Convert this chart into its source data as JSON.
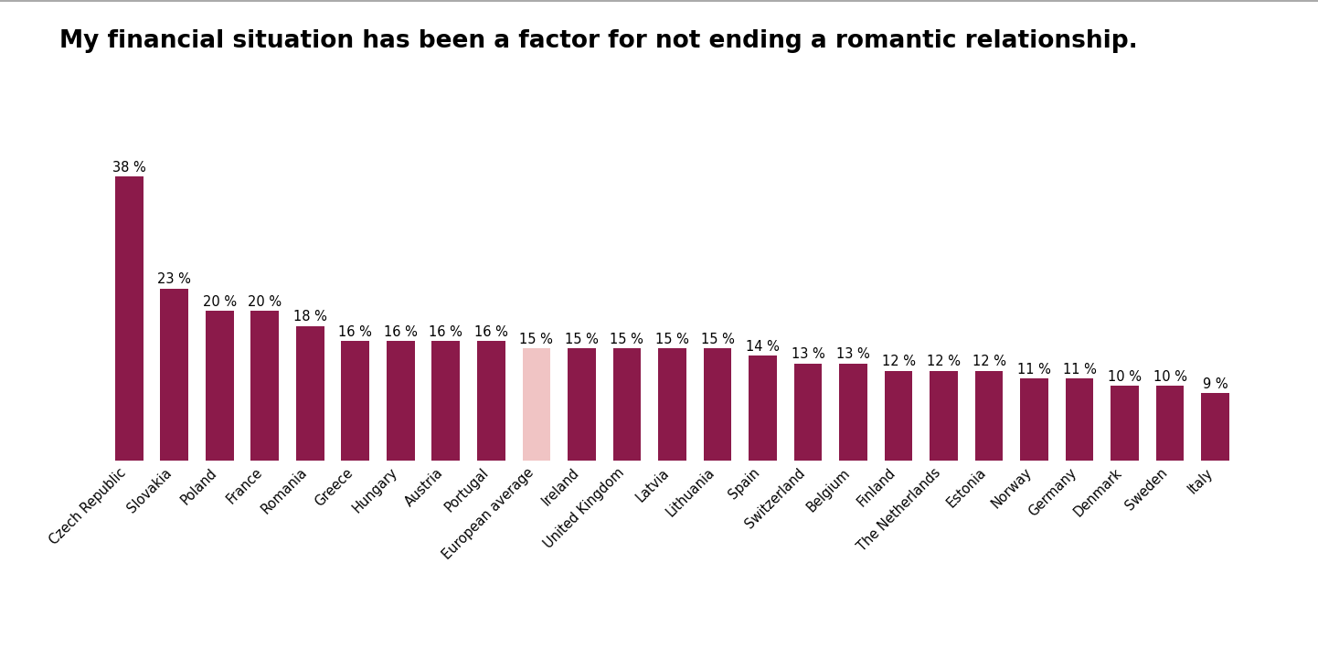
{
  "title": "My financial situation has been a factor for not ending a romantic relationship.",
  "categories": [
    "Czech Republic",
    "Slovakia",
    "Poland",
    "France",
    "Romania",
    "Greece",
    "Hungary",
    "Austria",
    "Portugal",
    "European average",
    "Ireland",
    "United Kingdom",
    "Latvia",
    "Lithuania",
    "Spain",
    "Switzerland",
    "Belgium",
    "Finland",
    "The Netherlands",
    "Estonia",
    "Norway",
    "Germany",
    "Denmark",
    "Sweden",
    "Italy"
  ],
  "values": [
    38,
    23,
    20,
    20,
    18,
    16,
    16,
    16,
    16,
    15,
    15,
    15,
    15,
    15,
    14,
    13,
    13,
    12,
    12,
    12,
    11,
    11,
    10,
    10,
    9
  ],
  "bar_colors": [
    "#8B1A4A",
    "#8B1A4A",
    "#8B1A4A",
    "#8B1A4A",
    "#8B1A4A",
    "#8B1A4A",
    "#8B1A4A",
    "#8B1A4A",
    "#8B1A4A",
    "#F0C4C4",
    "#8B1A4A",
    "#8B1A4A",
    "#8B1A4A",
    "#8B1A4A",
    "#8B1A4A",
    "#8B1A4A",
    "#8B1A4A",
    "#8B1A4A",
    "#8B1A4A",
    "#8B1A4A",
    "#8B1A4A",
    "#8B1A4A",
    "#8B1A4A",
    "#8B1A4A",
    "#8B1A4A"
  ],
  "ylim": [
    0,
    44
  ],
  "background_color": "#ffffff",
  "title_fontsize": 19,
  "label_fontsize": 10.5,
  "tick_fontsize": 10.5,
  "grid_color": "#d0d0d0",
  "top_line_color": "#999999",
  "bar_width": 0.62
}
